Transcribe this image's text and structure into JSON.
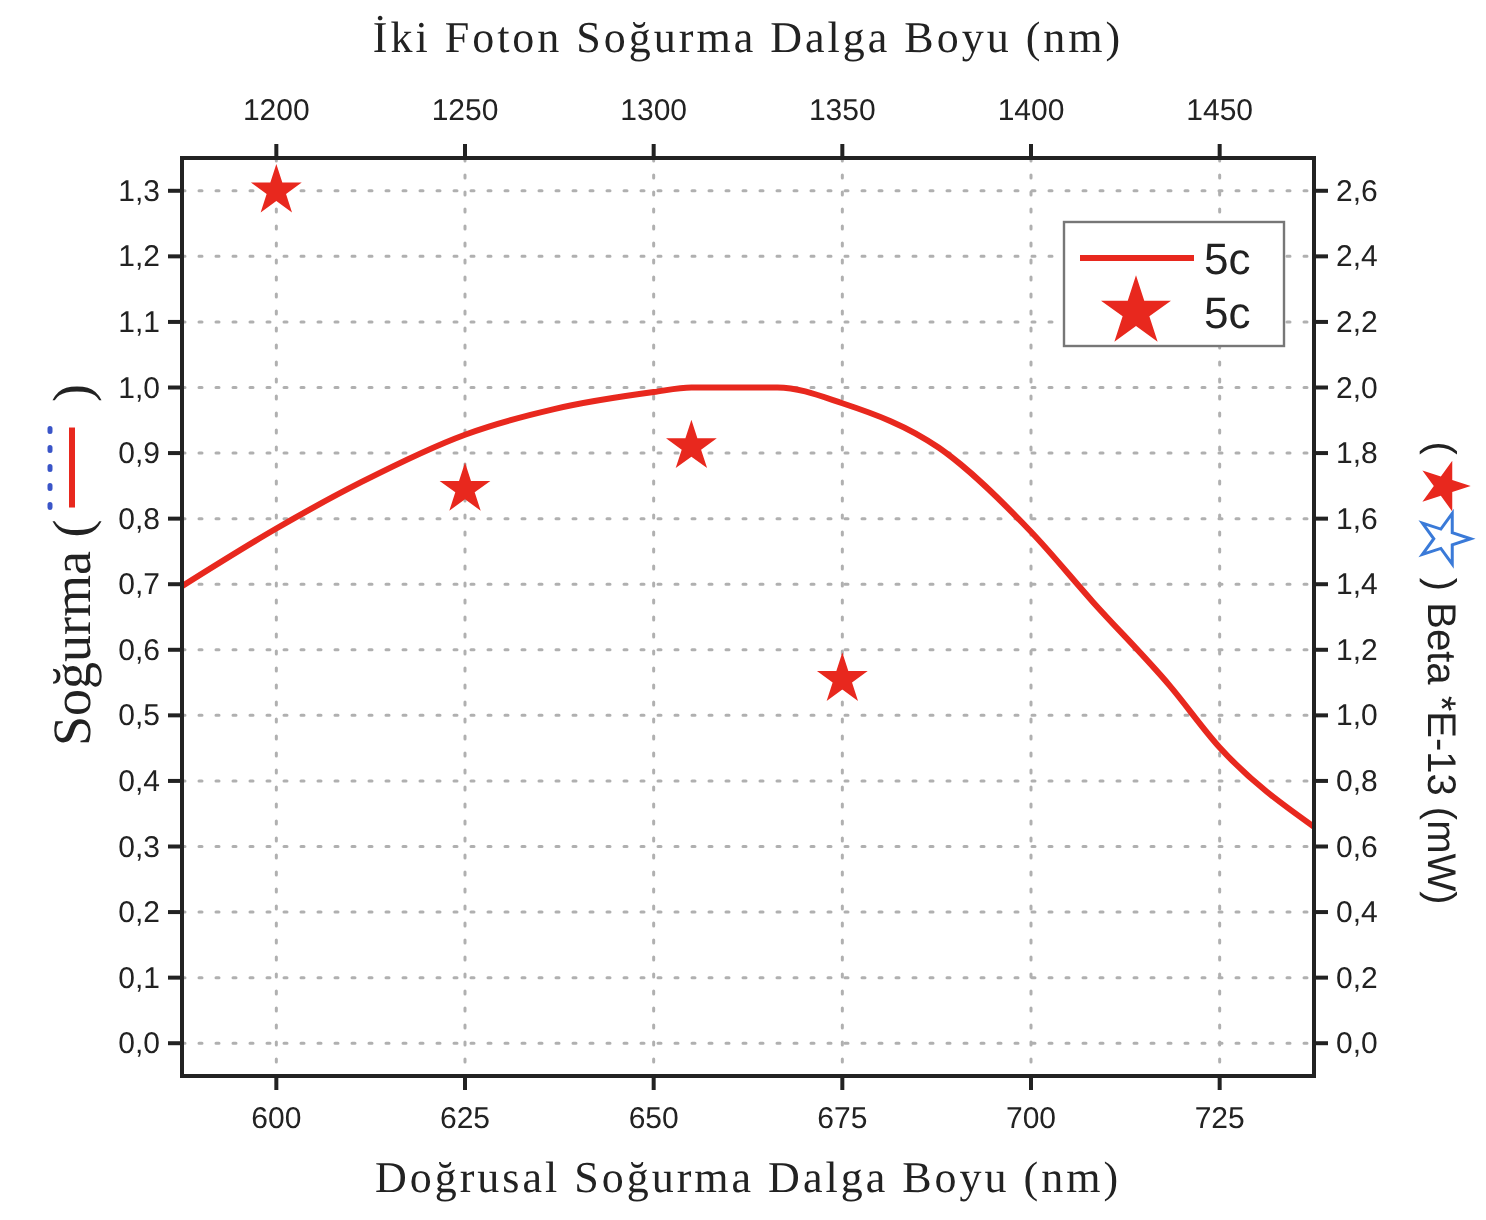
{
  "chart_data": {
    "type": "line",
    "xlabel": "Doğrusal Soğurma Dalga Boyu (nm)",
    "x2label": "İki Foton Soğurma Dalga Boyu (nm)",
    "ylabel": "Soğurma ( )",
    "y2label": "( ) Beta *E-13 (mW)",
    "xlim": [
      587.5,
      737.5
    ],
    "xticks": [
      600,
      625,
      650,
      675,
      700,
      725
    ],
    "x2lim": [
      1175,
      1475
    ],
    "x2ticks": [
      1200,
      1250,
      1300,
      1350,
      1400,
      1450
    ],
    "ylim": [
      -0.05,
      1.35
    ],
    "yticks": [
      {
        "value": 0,
        "label": "0,0"
      },
      {
        "value": 0.1,
        "label": "0,1"
      },
      {
        "value": 0.2,
        "label": "0,2"
      },
      {
        "value": 0.3,
        "label": "0,3"
      },
      {
        "value": 0.4,
        "label": "0,4"
      },
      {
        "value": 0.5,
        "label": "0,5"
      },
      {
        "value": 0.6,
        "label": "0,6"
      },
      {
        "value": 0.7,
        "label": "0,7"
      },
      {
        "value": 0.8,
        "label": "0,8"
      },
      {
        "value": 0.9,
        "label": "0,9"
      },
      {
        "value": 1.0,
        "label": "1,0"
      },
      {
        "value": 1.1,
        "label": "1,1"
      },
      {
        "value": 1.2,
        "label": "1,2"
      },
      {
        "value": 1.3,
        "label": "1,3"
      }
    ],
    "y2lim": [
      -0.1,
      2.7
    ],
    "y2ticks": [
      {
        "value": 0,
        "label": "0,0"
      },
      {
        "value": 0.2,
        "label": "0,2"
      },
      {
        "value": 0.4,
        "label": "0,4"
      },
      {
        "value": 0.6,
        "label": "0,6"
      },
      {
        "value": 0.8,
        "label": "0,8"
      },
      {
        "value": 1.0,
        "label": "1,0"
      },
      {
        "value": 1.2,
        "label": "1,2"
      },
      {
        "value": 1.4,
        "label": "1,4"
      },
      {
        "value": 1.6,
        "label": "1,6"
      },
      {
        "value": 1.8,
        "label": "1,8"
      },
      {
        "value": 2.0,
        "label": "2,0"
      },
      {
        "value": 2.2,
        "label": "2,2"
      },
      {
        "value": 2.4,
        "label": "2,4"
      },
      {
        "value": 2.6,
        "label": "2,6"
      }
    ],
    "grid": true,
    "legend": "top right",
    "series": [
      {
        "name": "5c",
        "color": "#e8281e",
        "marker": "none",
        "line_style": "solid",
        "x": [
          587.5,
          600,
          611.3,
          625,
          636.8,
          650,
          655,
          660,
          666.4,
          675,
          687.8,
          700,
          708.2,
          718.4,
          725,
          737.5
        ],
        "values": [
          0.697,
          0.785,
          0.856,
          0.928,
          0.967,
          0.993,
          1.0,
          1.0,
          1.0,
          0.976,
          0.908,
          0.78,
          0.673,
          0.545,
          0.451,
          0.33
        ]
      },
      {
        "name": "5c",
        "type": "scatter",
        "axis": "y2",
        "color": "#e8281e",
        "marker": "star",
        "x": [
          600,
          625,
          655,
          675
        ],
        "values": [
          2.6,
          1.69,
          1.82,
          1.11
        ]
      }
    ]
  }
}
